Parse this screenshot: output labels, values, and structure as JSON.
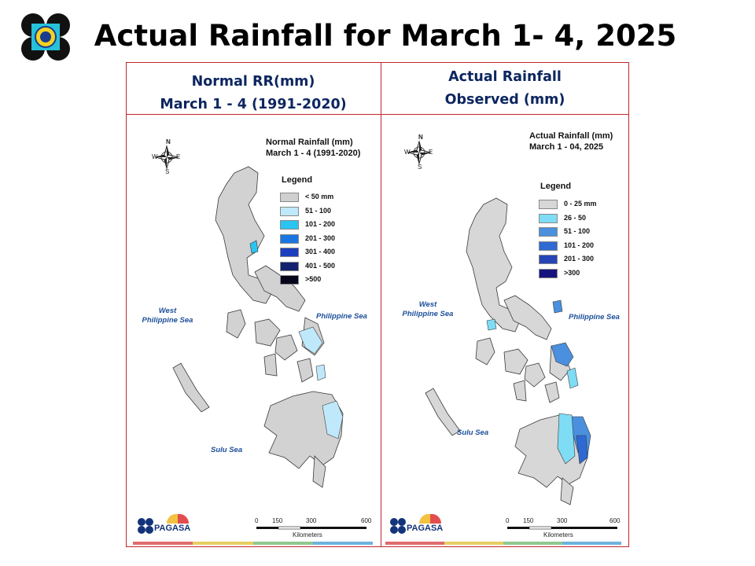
{
  "page_title": "Actual Rainfall for March 1- 4, 2025",
  "brand": {
    "name": "PAGASA",
    "color_navy": "#13347a",
    "strip_colors": [
      "#e06b6b",
      "#e6cf63",
      "#8fc98f",
      "#6cb3dd"
    ]
  },
  "panels": [
    {
      "header_line1": "Normal RR(mm)",
      "header_line2": "March 1 - 4 (1991-2020)",
      "map_title_line1": "Normal Rainfall (mm)",
      "map_title_line2": "March 1 - 4  (1991-2020)",
      "legend_title": "Legend",
      "legend": [
        {
          "label": "< 50 mm",
          "color": "#cfcfcf"
        },
        {
          "label": "51 - 100",
          "color": "#bfe9fb"
        },
        {
          "label": "101 - 200",
          "color": "#2bc4f1"
        },
        {
          "label": "201 - 300",
          "color": "#1a76e0"
        },
        {
          "label": "301 - 400",
          "color": "#1d3fbf"
        },
        {
          "label": "401 - 500",
          "color": "#13226e"
        },
        {
          "label": ">500",
          "color": "#05051c"
        }
      ],
      "sea_west": "West\nPhilippine Sea",
      "sea_east": "Philippine Sea",
      "sea_south": "Sulu Sea",
      "scale_ticks": [
        "0",
        "150",
        "300",
        "600"
      ],
      "scale_unit": "Kilometers",
      "compass_letters": [
        "N",
        "E",
        "S",
        "W"
      ]
    },
    {
      "header_line1": "Actual Rainfall",
      "header_line2": "Observed  (mm)",
      "map_title_line1": "Actual Rainfall (mm)",
      "map_title_line2": "March 1 - 04, 2025",
      "legend_title": "Legend",
      "legend": [
        {
          "label": "0 - 25 mm",
          "color": "#d7d7d7"
        },
        {
          "label": "26 - 50",
          "color": "#7fdcf5"
        },
        {
          "label": "51 - 100",
          "color": "#4a90de"
        },
        {
          "label": "101 - 200",
          "color": "#2f69d4"
        },
        {
          "label": "201 - 300",
          "color": "#2545b6"
        },
        {
          "label": ">300",
          "color": "#17137e"
        }
      ],
      "sea_west": "West\nPhilippine Sea",
      "sea_east": "Philippine Sea",
      "sea_south": "Sulu Sea",
      "scale_ticks": [
        "0",
        "150",
        "300",
        "600"
      ],
      "scale_unit": "Kilometers",
      "compass_letters": [
        "N",
        "E",
        "S",
        "W"
      ]
    }
  ]
}
